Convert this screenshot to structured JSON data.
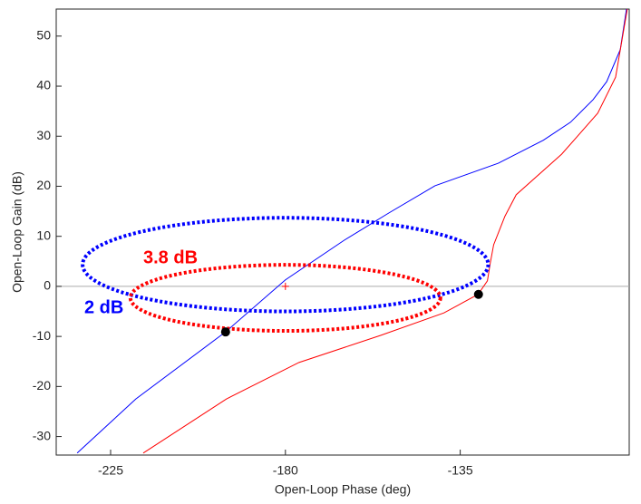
{
  "chart_data": {
    "type": "nichols",
    "xlabel": "Open-Loop Phase (deg)",
    "ylabel": "Open-Loop Gain (dB)",
    "xlim": [
      -239,
      -91.5
    ],
    "ylim": [
      -33.7,
      55.4
    ],
    "xticks": [
      -225,
      -180,
      -135
    ],
    "yticks": [
      -30,
      -20,
      -10,
      0,
      10,
      20,
      30,
      40,
      50
    ],
    "series": [
      {
        "color": "#0000ff",
        "x": [
          -233.6,
          -218.5,
          -195.4,
          -180,
          -164.9,
          -153.3,
          -141.5,
          -125.2,
          -113.6,
          -106.6,
          -100.8,
          -97.3,
          -93.8,
          -92.2
        ],
        "values": [
          -33.3,
          -22.5,
          -9.1,
          1.3,
          9.2,
          14.7,
          20.1,
          24.6,
          29.2,
          32.8,
          37.3,
          40.9,
          47.3,
          55.4
        ]
      },
      {
        "color": "#ff0000",
        "x": [
          -216.6,
          -195.2,
          -176.5,
          -155.5,
          -139.2,
          -130.4,
          -128,
          -127.3,
          -126.4,
          -123.5,
          -120.6,
          -108.9,
          -99.6,
          -95,
          -92
        ],
        "values": [
          -33.3,
          -22.5,
          -15.2,
          -9.8,
          -5.3,
          -1.6,
          1.1,
          4.5,
          8.3,
          14,
          18.3,
          26.4,
          34.6,
          41.8,
          55.4
        ]
      }
    ],
    "ellipses": [
      {
        "label": "2 dB",
        "color": "#0000ff",
        "center": [
          -180,
          4.35
        ],
        "radii": [
          52.2,
          9.35
        ]
      },
      {
        "label": "3.8 dB",
        "color": "#ff0000",
        "center": [
          -180,
          -2.3
        ],
        "radii": [
          39.9,
          6.6
        ]
      }
    ],
    "points": {
      "x": [
        -195.4,
        -130.3
      ],
      "values": [
        -9.1,
        -1.6
      ]
    },
    "critical_point": [
      -180,
      0
    ]
  }
}
